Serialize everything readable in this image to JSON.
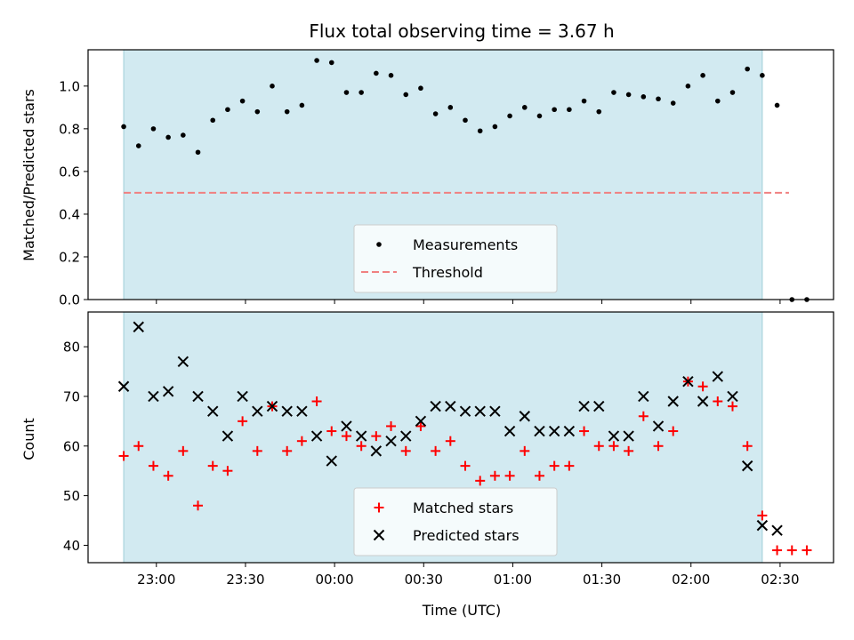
{
  "chart_data": [
    {
      "type": "scatter",
      "title": "Flux total observing time = 3.67 h",
      "xlabel": "",
      "ylabel": "Matched/Predicted stars",
      "xlim": [
        "22:37",
        "02:48"
      ],
      "ylim": [
        0,
        1.17
      ],
      "yticks": [
        0.0,
        0.2,
        0.4,
        0.6,
        0.8,
        1.0
      ],
      "ytick_labels": [
        "0.0",
        "0.2",
        "0.4",
        "0.6",
        "0.8",
        "1.0"
      ],
      "shaded_span": [
        "22:49",
        "02:24"
      ],
      "shade_color": "#add8e6",
      "grid": false,
      "legend_position": "lower-center",
      "legend": [
        {
          "label": "Measurements",
          "marker": "dot",
          "color": "#000000"
        },
        {
          "label": "Threshold",
          "marker": "dashed-line",
          "color": "#f08080"
        }
      ],
      "threshold": {
        "name": "Threshold",
        "value": 0.5,
        "x_range": [
          "22:49",
          "02:33"
        ],
        "color": "#f08080"
      },
      "series": [
        {
          "name": "Measurements",
          "color": "#000000",
          "x": [
            "22:49",
            "22:54",
            "22:59",
            "23:04",
            "23:09",
            "23:14",
            "23:19",
            "23:24",
            "23:29",
            "23:34",
            "23:39",
            "23:44",
            "23:49",
            "23:54",
            "23:59",
            "24:04",
            "24:09",
            "24:14",
            "24:19",
            "24:24",
            "24:29",
            "24:34",
            "24:39",
            "24:44",
            "24:49",
            "24:54",
            "24:59",
            "25:04",
            "25:09",
            "25:14",
            "25:19",
            "25:24",
            "25:29",
            "25:34",
            "25:39",
            "25:44",
            "25:49",
            "25:54",
            "25:59",
            "26:04",
            "26:09",
            "26:14",
            "26:19",
            "26:24",
            "26:29",
            "26:34"
          ],
          "y": [
            0.81,
            0.72,
            0.8,
            0.76,
            0.77,
            0.69,
            0.84,
            0.89,
            0.93,
            0.88,
            1.0,
            0.88,
            0.91,
            1.12,
            1.11,
            0.97,
            0.97,
            1.06,
            1.05,
            0.96,
            0.99,
            0.87,
            0.9,
            0.84,
            0.79,
            0.81,
            0.86,
            0.9,
            0.86,
            0.89,
            0.89,
            0.93,
            0.88,
            0.97,
            0.96,
            0.95,
            0.94,
            0.92,
            1.0,
            1.05,
            0.93,
            0.97,
            1.08,
            1.05,
            0.91,
            0.0
          ]
        },
        {
          "name": "",
          "color": "#000000",
          "x": [
            "26:39"
          ],
          "y": [
            0.0
          ]
        }
      ]
    },
    {
      "type": "scatter",
      "title": "",
      "xlabel": "Time (UTC)",
      "ylabel": "Count",
      "xlim": [
        "22:37",
        "02:48"
      ],
      "ylim": [
        36.5,
        87
      ],
      "yticks": [
        40,
        50,
        60,
        70,
        80
      ],
      "ytick_labels": [
        "40",
        "50",
        "60",
        "70",
        "80"
      ],
      "xticks": [
        "23:00",
        "23:30",
        "00:00",
        "00:30",
        "01:00",
        "01:30",
        "02:00",
        "02:30"
      ],
      "shaded_span": [
        "22:49",
        "02:24"
      ],
      "shade_color": "#add8e6",
      "grid": false,
      "legend_position": "lower-center",
      "legend": [
        {
          "label": "Matched stars",
          "marker": "plus",
          "color": "#ff0000"
        },
        {
          "label": "Predicted stars",
          "marker": "x",
          "color": "#000000"
        }
      ],
      "series": [
        {
          "name": "Matched stars",
          "color": "#ff0000",
          "marker": "plus",
          "x": [
            "22:49",
            "22:54",
            "22:59",
            "23:04",
            "23:09",
            "23:14",
            "23:19",
            "23:24",
            "23:29",
            "23:34",
            "23:39",
            "23:44",
            "23:49",
            "23:54",
            "23:59",
            "24:04",
            "24:09",
            "24:14",
            "24:19",
            "24:24",
            "24:29",
            "24:34",
            "24:39",
            "24:44",
            "24:49",
            "24:54",
            "24:59",
            "25:04",
            "25:09",
            "25:14",
            "25:19",
            "25:24",
            "25:29",
            "25:34",
            "25:39",
            "25:44",
            "25:49",
            "25:54",
            "25:59",
            "26:04",
            "26:09",
            "26:14",
            "26:19",
            "26:24",
            "26:29",
            "26:34"
          ],
          "y": [
            58,
            60,
            56,
            54,
            59,
            48,
            56,
            55,
            65,
            59,
            68,
            59,
            61,
            69,
            63,
            62,
            60,
            62,
            64,
            59,
            64,
            59,
            61,
            56,
            53,
            54,
            54,
            59,
            54,
            56,
            56,
            63,
            60,
            60,
            59,
            66,
            60,
            63,
            73,
            72,
            69,
            68,
            60,
            46,
            39,
            39
          ]
        },
        {
          "name": "Predicted stars",
          "color": "#000000",
          "marker": "x",
          "x": [
            "22:49",
            "22:54",
            "22:59",
            "23:04",
            "23:09",
            "23:14",
            "23:19",
            "23:24",
            "23:29",
            "23:34",
            "23:39",
            "23:44",
            "23:49",
            "23:54",
            "23:59",
            "24:04",
            "24:09",
            "24:14",
            "24:19",
            "24:24",
            "24:29",
            "24:34",
            "24:39",
            "24:44",
            "24:49",
            "24:54",
            "24:59",
            "25:04",
            "25:09",
            "25:14",
            "25:19",
            "25:24",
            "25:29",
            "25:34",
            "25:39",
            "25:44",
            "25:49",
            "25:54",
            "25:59",
            "26:04",
            "26:09",
            "26:14",
            "26:19",
            "26:24"
          ],
          "y": [
            72,
            84,
            70,
            71,
            77,
            70,
            67,
            62,
            70,
            67,
            68,
            67,
            67,
            62,
            57,
            64,
            62,
            59,
            61,
            62,
            65,
            68,
            68,
            67,
            67,
            67,
            63,
            66,
            63,
            63,
            63,
            68,
            68,
            62,
            62,
            70,
            64,
            69,
            73,
            69,
            74,
            70,
            56,
            44
          ]
        },
        {
          "name": "",
          "color": "#000000",
          "marker": "x",
          "x": [
            "26:29"
          ],
          "y": [
            43
          ]
        },
        {
          "name": "",
          "color": "#ff0000",
          "marker": "plus",
          "x": [
            "26:39"
          ],
          "y": [
            39
          ]
        }
      ]
    }
  ]
}
